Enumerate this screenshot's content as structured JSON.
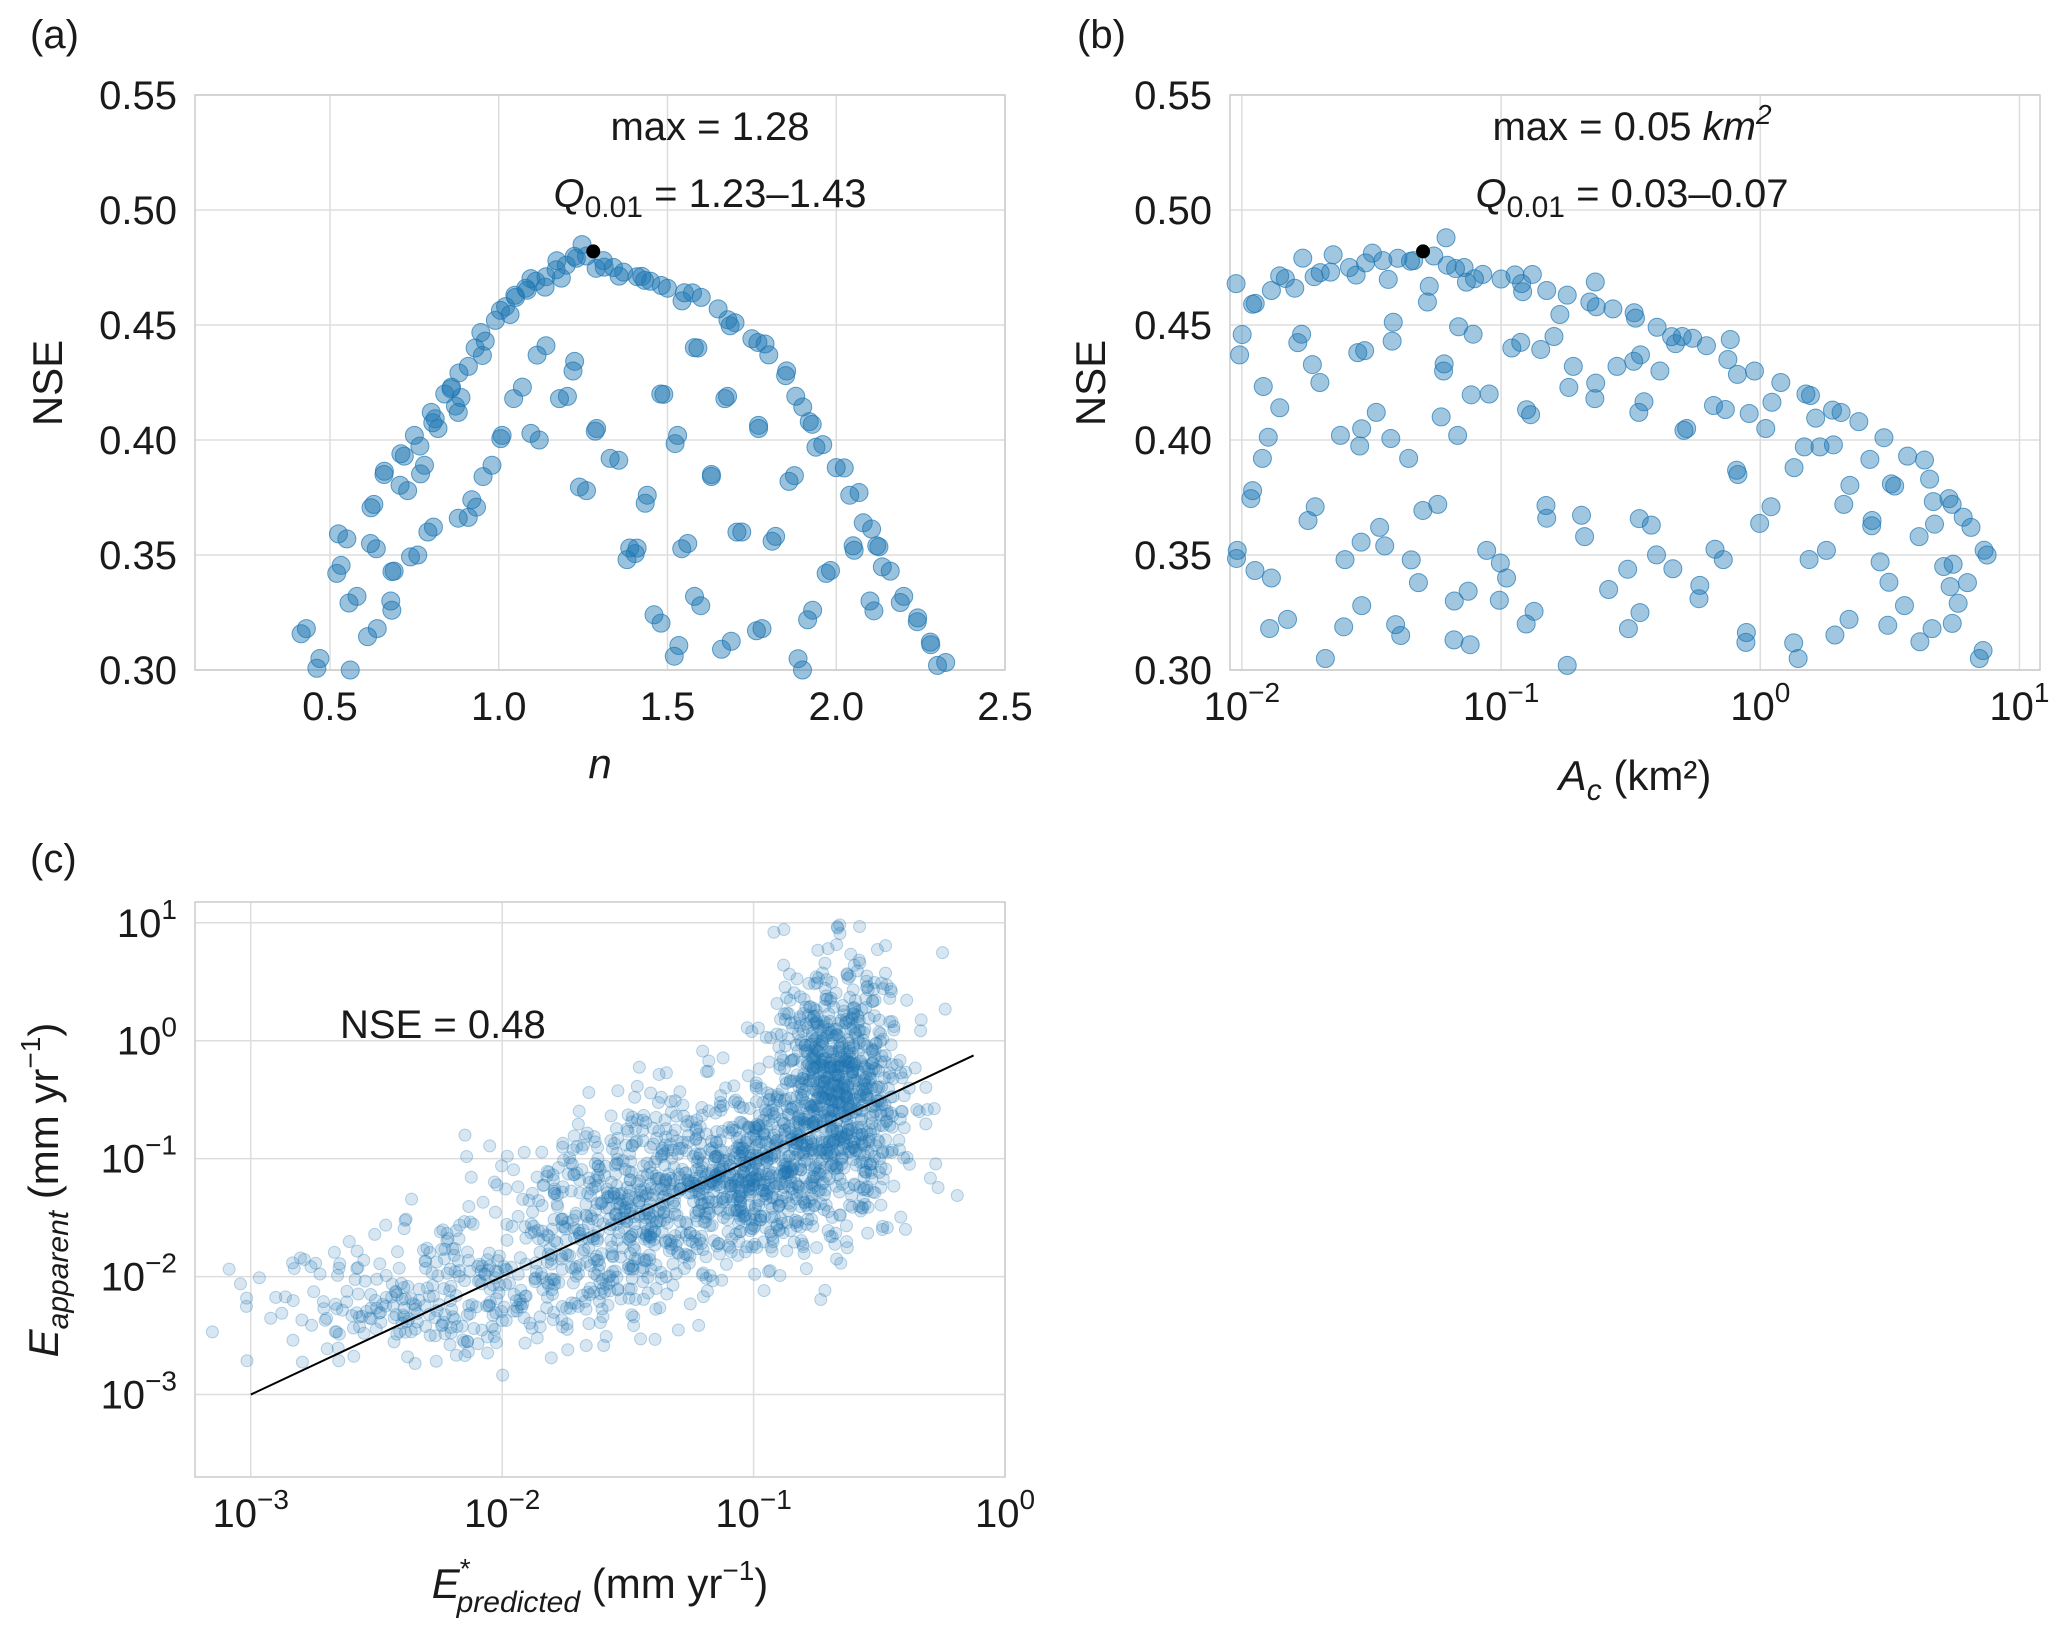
{
  "colors": {
    "point": "#1f77b4",
    "best": "#000000",
    "fit_line": "#000000",
    "grid": "#dddddd"
  },
  "panels": {
    "a": {
      "letter": "(a)",
      "xlabel": "n",
      "ylabel": "NSE",
      "annot_max": "max = 1.28",
      "annot_q_prefix": "Q",
      "annot_q_sub": "0.01",
      "annot_q_value": " = 1.23–1.43"
    },
    "b": {
      "letter": "(b)",
      "ylabel": "NSE",
      "xlabel_main": "A",
      "xlabel_sub": "c",
      "xlabel_unit": " (km²)",
      "annot_max_prefix": "max = 0.05 ",
      "annot_max_unit": "km",
      "annot_max_unit_sup": "2",
      "annot_q_prefix": "Q",
      "annot_q_sub": "0.01",
      "annot_q_value": " = 0.03–0.07"
    },
    "c": {
      "letter": "(c)",
      "nse_label": "NSE  = 0.48",
      "xlabel_main": "E",
      "xlabel_sup": "*",
      "xlabel_sub": "predicted",
      "xlabel_unit": " (mm yr",
      "xlabel_unit_sup": "−1",
      "xlabel_close": ")",
      "ylabel_main": "E",
      "ylabel_sub": "apparent",
      "ylabel_unit": " (mm yr",
      "ylabel_unit_sup": "−1",
      "ylabel_close": ")"
    }
  },
  "chart_data": [
    {
      "id": "a",
      "type": "scatter",
      "xlabel": "n",
      "ylabel": "NSE",
      "xlim": [
        0.1,
        2.5
      ],
      "ylim": [
        0.3,
        0.55
      ],
      "xticks": [
        "0.5",
        "1.0",
        "1.5",
        "2.0",
        "2.5"
      ],
      "yticks": [
        "0.30",
        "0.35",
        "0.40",
        "0.45",
        "0.50",
        "0.55"
      ],
      "best": {
        "x": 1.28,
        "y": 0.482
      },
      "points_description": "about 400 parameter samples forming an arch-shaped envelope peaking near n=1.28 (NSE 0.48); many samples fall below the envelope",
      "points": [
        [
          0.43,
          0.318
        ],
        [
          0.47,
          0.305
        ],
        [
          0.52,
          0.342
        ],
        [
          0.55,
          0.357
        ],
        [
          0.58,
          0.332
        ],
        [
          0.62,
          0.355
        ],
        [
          0.63,
          0.372
        ],
        [
          0.66,
          0.385
        ],
        [
          0.69,
          0.343
        ],
        [
          0.71,
          0.394
        ],
        [
          0.73,
          0.378
        ],
        [
          0.75,
          0.402
        ],
        [
          0.78,
          0.389
        ],
        [
          0.8,
          0.412
        ],
        [
          0.82,
          0.405
        ],
        [
          0.84,
          0.42
        ],
        [
          0.86,
          0.423
        ],
        [
          0.88,
          0.412
        ],
        [
          0.91,
          0.432
        ],
        [
          0.93,
          0.44
        ],
        [
          0.96,
          0.443
        ],
        [
          0.99,
          0.452
        ],
        [
          1.02,
          0.458
        ],
        [
          1.05,
          0.462
        ],
        [
          1.08,
          0.466
        ],
        [
          1.11,
          0.469
        ],
        [
          1.14,
          0.471
        ],
        [
          1.17,
          0.474
        ],
        [
          1.2,
          0.476
        ],
        [
          1.23,
          0.479
        ],
        [
          1.26,
          0.48
        ],
        [
          1.31,
          0.478
        ],
        [
          1.34,
          0.475
        ],
        [
          1.37,
          0.473
        ],
        [
          1.41,
          0.471
        ],
        [
          1.45,
          0.469
        ],
        [
          1.5,
          0.466
        ],
        [
          1.55,
          0.464
        ],
        [
          1.6,
          0.462
        ],
        [
          1.65,
          0.457
        ],
        [
          1.7,
          0.451
        ],
        [
          1.75,
          0.444
        ],
        [
          1.8,
          0.437
        ],
        [
          1.85,
          0.428
        ],
        [
          1.88,
          0.419
        ],
        [
          1.92,
          0.408
        ],
        [
          1.96,
          0.398
        ],
        [
          2.0,
          0.388
        ],
        [
          2.04,
          0.376
        ],
        [
          2.08,
          0.364
        ],
        [
          2.12,
          0.354
        ],
        [
          2.16,
          0.343
        ],
        [
          2.2,
          0.332
        ],
        [
          2.24,
          0.321
        ],
        [
          2.28,
          0.311
        ],
        [
          2.3,
          0.302
        ],
        [
          0.68,
          0.33
        ],
        [
          0.79,
          0.36
        ],
        [
          0.92,
          0.374
        ],
        [
          1.01,
          0.402
        ],
        [
          1.07,
          0.423
        ],
        [
          1.14,
          0.441
        ],
        [
          1.22,
          0.43
        ],
        [
          1.29,
          0.405
        ],
        [
          1.33,
          0.392
        ],
        [
          1.38,
          0.348
        ],
        [
          1.44,
          0.376
        ],
        [
          1.48,
          0.42
        ],
        [
          1.53,
          0.402
        ],
        [
          1.59,
          0.44
        ],
        [
          1.63,
          0.385
        ],
        [
          1.67,
          0.418
        ],
        [
          1.72,
          0.36
        ],
        [
          1.77,
          0.405
        ],
        [
          1.81,
          0.356
        ],
        [
          1.86,
          0.382
        ],
        [
          1.93,
          0.326
        ],
        [
          1.97,
          0.342
        ],
        [
          2.05,
          0.354
        ],
        [
          2.1,
          0.33
        ],
        [
          1.46,
          0.324
        ],
        [
          1.52,
          0.306
        ],
        [
          1.58,
          0.332
        ],
        [
          1.66,
          0.309
        ],
        [
          1.78,
          0.318
        ],
        [
          1.9,
          0.3
        ],
        [
          1.41,
          0.353
        ],
        [
          1.26,
          0.378
        ],
        [
          1.18,
          0.418
        ],
        [
          1.12,
          0.4
        ],
        [
          0.98,
          0.389
        ],
        [
          0.88,
          0.366
        ],
        [
          0.76,
          0.35
        ],
        [
          0.64,
          0.318
        ],
        [
          0.56,
          0.3
        ],
        [
          1.56,
          0.355
        ]
      ]
    },
    {
      "id": "b",
      "type": "scatter",
      "xscale": "log",
      "xlabel": "Ac (km²)",
      "ylabel": "NSE",
      "xlim": [
        0.009,
        12
      ],
      "ylim": [
        0.3,
        0.55
      ],
      "xticks": [
        {
          "base": "10",
          "exp": "−2"
        },
        {
          "base": "10",
          "exp": "−1"
        },
        {
          "base": "10",
          "exp": "0"
        },
        {
          "base": "10",
          "exp": "1"
        }
      ],
      "yticks": [
        "0.30",
        "0.35",
        "0.40",
        "0.45",
        "0.50",
        "0.55"
      ],
      "best": {
        "x": 0.05,
        "y": 0.482
      },
      "points_description": "about 400 samples; flat-topped envelope peaking near Ac = 0.05 km2 (NSE 0.48) and declining toward 0.36 at 7 km2, with broad scatter below",
      "points": [
        [
          0.0095,
          0.468
        ],
        [
          0.011,
          0.459
        ],
        [
          0.013,
          0.465
        ],
        [
          0.016,
          0.466
        ],
        [
          0.019,
          0.471
        ],
        [
          0.022,
          0.473
        ],
        [
          0.026,
          0.475
        ],
        [
          0.03,
          0.477
        ],
        [
          0.035,
          0.478
        ],
        [
          0.04,
          0.479
        ],
        [
          0.046,
          0.478
        ],
        [
          0.055,
          0.48
        ],
        [
          0.062,
          0.476
        ],
        [
          0.072,
          0.475
        ],
        [
          0.085,
          0.472
        ],
        [
          0.1,
          0.47
        ],
        [
          0.12,
          0.468
        ],
        [
          0.15,
          0.465
        ],
        [
          0.18,
          0.463
        ],
        [
          0.22,
          0.46
        ],
        [
          0.27,
          0.457
        ],
        [
          0.33,
          0.453
        ],
        [
          0.4,
          0.449
        ],
        [
          0.5,
          0.445
        ],
        [
          0.62,
          0.441
        ],
        [
          0.75,
          0.435
        ],
        [
          0.95,
          0.43
        ],
        [
          1.2,
          0.425
        ],
        [
          1.5,
          0.42
        ],
        [
          1.9,
          0.413
        ],
        [
          2.4,
          0.408
        ],
        [
          3.0,
          0.401
        ],
        [
          3.7,
          0.393
        ],
        [
          4.5,
          0.383
        ],
        [
          5.5,
          0.372
        ],
        [
          6.5,
          0.362
        ],
        [
          7.5,
          0.35
        ],
        [
          0.0098,
          0.437
        ],
        [
          0.012,
          0.392
        ],
        [
          0.014,
          0.414
        ],
        [
          0.017,
          0.446
        ],
        [
          0.02,
          0.425
        ],
        [
          0.024,
          0.402
        ],
        [
          0.028,
          0.438
        ],
        [
          0.033,
          0.412
        ],
        [
          0.038,
          0.443
        ],
        [
          0.044,
          0.392
        ],
        [
          0.052,
          0.46
        ],
        [
          0.06,
          0.43
        ],
        [
          0.068,
          0.402
        ],
        [
          0.078,
          0.446
        ],
        [
          0.09,
          0.42
        ],
        [
          0.11,
          0.44
        ],
        [
          0.13,
          0.411
        ],
        [
          0.16,
          0.445
        ],
        [
          0.19,
          0.432
        ],
        [
          0.23,
          0.418
        ],
        [
          0.28,
          0.432
        ],
        [
          0.34,
          0.412
        ],
        [
          0.41,
          0.43
        ],
        [
          0.52,
          0.405
        ],
        [
          0.66,
          0.415
        ],
        [
          0.82,
          0.385
        ],
        [
          1.05,
          0.405
        ],
        [
          1.35,
          0.388
        ],
        [
          1.7,
          0.397
        ],
        [
          2.1,
          0.372
        ],
        [
          2.7,
          0.365
        ],
        [
          3.3,
          0.38
        ],
        [
          4.1,
          0.358
        ],
        [
          5.1,
          0.345
        ],
        [
          6.3,
          0.338
        ],
        [
          0.0096,
          0.352
        ],
        [
          0.011,
          0.378
        ],
        [
          0.013,
          0.34
        ],
        [
          0.015,
          0.322
        ],
        [
          0.018,
          0.365
        ],
        [
          0.021,
          0.305
        ],
        [
          0.025,
          0.348
        ],
        [
          0.029,
          0.328
        ],
        [
          0.034,
          0.362
        ],
        [
          0.041,
          0.315
        ],
        [
          0.048,
          0.338
        ],
        [
          0.057,
          0.372
        ],
        [
          0.066,
          0.33
        ],
        [
          0.076,
          0.311
        ],
        [
          0.088,
          0.352
        ],
        [
          0.105,
          0.34
        ],
        [
          0.125,
          0.32
        ],
        [
          0.15,
          0.366
        ],
        [
          0.18,
          0.302
        ],
        [
          0.21,
          0.358
        ],
        [
          0.26,
          0.335
        ],
        [
          0.31,
          0.318
        ],
        [
          0.38,
          0.363
        ],
        [
          0.46,
          0.344
        ],
        [
          0.58,
          0.331
        ],
        [
          0.72,
          0.348
        ],
        [
          0.88,
          0.312
        ],
        [
          1.1,
          0.371
        ],
        [
          1.4,
          0.305
        ],
        [
          1.8,
          0.352
        ],
        [
          2.2,
          0.322
        ],
        [
          2.9,
          0.347
        ],
        [
          3.6,
          0.328
        ],
        [
          4.6,
          0.318
        ],
        [
          5.8,
          0.329
        ],
        [
          7.0,
          0.305
        ]
      ]
    },
    {
      "id": "c",
      "type": "scatter",
      "xscale": "log",
      "yscale": "log",
      "xlabel": "E*predicted (mm yr⁻¹)",
      "ylabel": "Eapparent (mm yr⁻¹)",
      "xlim": [
        0.0006,
        1.0
      ],
      "ylim": [
        0.0002,
        15
      ],
      "xticks": [
        {
          "base": "10",
          "exp": "−3"
        },
        {
          "base": "10",
          "exp": "−2"
        },
        {
          "base": "10",
          "exp": "−1"
        },
        {
          "base": "10",
          "exp": "0"
        }
      ],
      "yticks": [
        {
          "base": "10",
          "exp": "−3"
        },
        {
          "base": "10",
          "exp": "−2"
        },
        {
          "base": "10",
          "exp": "−1"
        },
        {
          "base": "10",
          "exp": "0"
        },
        {
          "base": "10",
          "exp": "1"
        }
      ],
      "fit_line": {
        "x": [
          0.001,
          0.75
        ],
        "y": [
          0.001,
          0.75
        ]
      },
      "nse": 0.48,
      "points_description": "several thousand faint points clustered along the 1:1 line, densest around 0.1-0.3 mm/yr predicted where apparent rates extend up to 10 mm/yr",
      "cloud": [
        {
          "cx": -2.0,
          "cy": -2.05,
          "sx": 0.35,
          "sy": 0.28,
          "n": 300
        },
        {
          "cx": -1.45,
          "cy": -1.4,
          "sx": 0.28,
          "sy": 0.35,
          "n": 500
        },
        {
          "cx": -0.95,
          "cy": -1.05,
          "sx": 0.25,
          "sy": 0.38,
          "n": 700
        },
        {
          "cx": -0.65,
          "cy": -0.25,
          "sx": 0.13,
          "sy": 0.45,
          "n": 650
        },
        {
          "cx": -2.55,
          "cy": -2.35,
          "sx": 0.25,
          "sy": 0.22,
          "n": 80
        }
      ]
    }
  ]
}
